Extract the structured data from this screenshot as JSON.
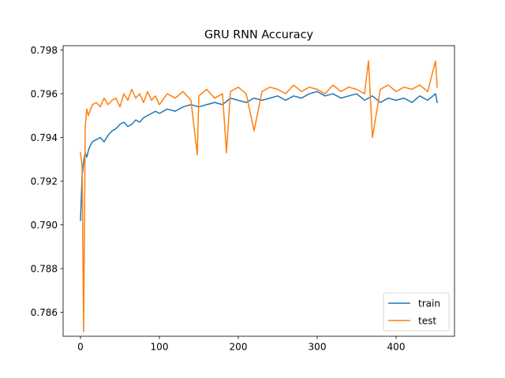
{
  "chart_data": {
    "type": "line",
    "title": "GRU RNN Accuracy",
    "xlabel": "",
    "ylabel": "",
    "xlim": [
      -22,
      474
    ],
    "ylim": [
      0.7849,
      0.7982
    ],
    "xticks": [
      0,
      100,
      200,
      300,
      400
    ],
    "xtick_labels": [
      "0",
      "100",
      "200",
      "300",
      "400"
    ],
    "yticks": [
      0.786,
      0.788,
      0.79,
      0.792,
      0.794,
      0.796,
      0.798
    ],
    "ytick_labels": [
      "0.786",
      "0.788",
      "0.790",
      "0.792",
      "0.794",
      "0.796",
      "0.798"
    ],
    "grid": false,
    "legend_position": "lower-right",
    "series": [
      {
        "name": "train",
        "color": "#1f77b4",
        "x": [
          0,
          2,
          4,
          6,
          8,
          10,
          12,
          15,
          20,
          25,
          30,
          35,
          40,
          45,
          50,
          55,
          60,
          65,
          70,
          75,
          80,
          85,
          90,
          95,
          100,
          110,
          120,
          130,
          140,
          150,
          160,
          170,
          180,
          190,
          200,
          210,
          220,
          230,
          240,
          250,
          260,
          270,
          280,
          290,
          300,
          310,
          320,
          330,
          340,
          350,
          360,
          370,
          380,
          390,
          400,
          410,
          420,
          430,
          440,
          450,
          452
        ],
        "y": [
          0.7902,
          0.7922,
          0.7929,
          0.7933,
          0.7931,
          0.7934,
          0.7936,
          0.7938,
          0.7939,
          0.794,
          0.7938,
          0.7941,
          0.7943,
          0.7944,
          0.7946,
          0.7947,
          0.7945,
          0.7946,
          0.7948,
          0.7947,
          0.7949,
          0.795,
          0.7951,
          0.7952,
          0.7951,
          0.7953,
          0.7952,
          0.7954,
          0.7955,
          0.7954,
          0.7955,
          0.7956,
          0.7955,
          0.7958,
          0.7957,
          0.7956,
          0.7958,
          0.7957,
          0.7958,
          0.7959,
          0.7957,
          0.7959,
          0.7958,
          0.796,
          0.7961,
          0.7959,
          0.796,
          0.7958,
          0.7959,
          0.796,
          0.7957,
          0.7959,
          0.7956,
          0.7958,
          0.7957,
          0.7958,
          0.7956,
          0.7959,
          0.7957,
          0.796,
          0.7956
        ]
      },
      {
        "name": "test",
        "color": "#ff7f0e",
        "x": [
          0,
          2,
          4,
          6,
          8,
          10,
          12,
          15,
          20,
          25,
          30,
          35,
          40,
          45,
          50,
          55,
          60,
          65,
          70,
          75,
          80,
          85,
          90,
          95,
          100,
          110,
          120,
          130,
          140,
          148,
          150,
          160,
          170,
          180,
          185,
          190,
          200,
          210,
          220,
          230,
          240,
          250,
          260,
          270,
          280,
          290,
          300,
          310,
          320,
          330,
          340,
          350,
          360,
          365,
          370,
          380,
          390,
          400,
          410,
          420,
          430,
          440,
          450,
          452
        ],
        "y": [
          0.7933,
          0.7927,
          0.7851,
          0.7945,
          0.7953,
          0.795,
          0.7952,
          0.7955,
          0.7956,
          0.7954,
          0.7958,
          0.7955,
          0.7957,
          0.7958,
          0.7954,
          0.796,
          0.7957,
          0.7962,
          0.7958,
          0.796,
          0.7956,
          0.7961,
          0.7957,
          0.7959,
          0.7955,
          0.796,
          0.7958,
          0.7961,
          0.7957,
          0.7932,
          0.7959,
          0.7962,
          0.7958,
          0.796,
          0.7933,
          0.7961,
          0.7963,
          0.796,
          0.7943,
          0.7961,
          0.7963,
          0.7962,
          0.796,
          0.7964,
          0.7961,
          0.7963,
          0.7962,
          0.796,
          0.7964,
          0.7961,
          0.7963,
          0.7962,
          0.796,
          0.7975,
          0.794,
          0.7962,
          0.7964,
          0.7961,
          0.7963,
          0.7962,
          0.7964,
          0.7961,
          0.7975,
          0.7963
        ]
      }
    ]
  }
}
